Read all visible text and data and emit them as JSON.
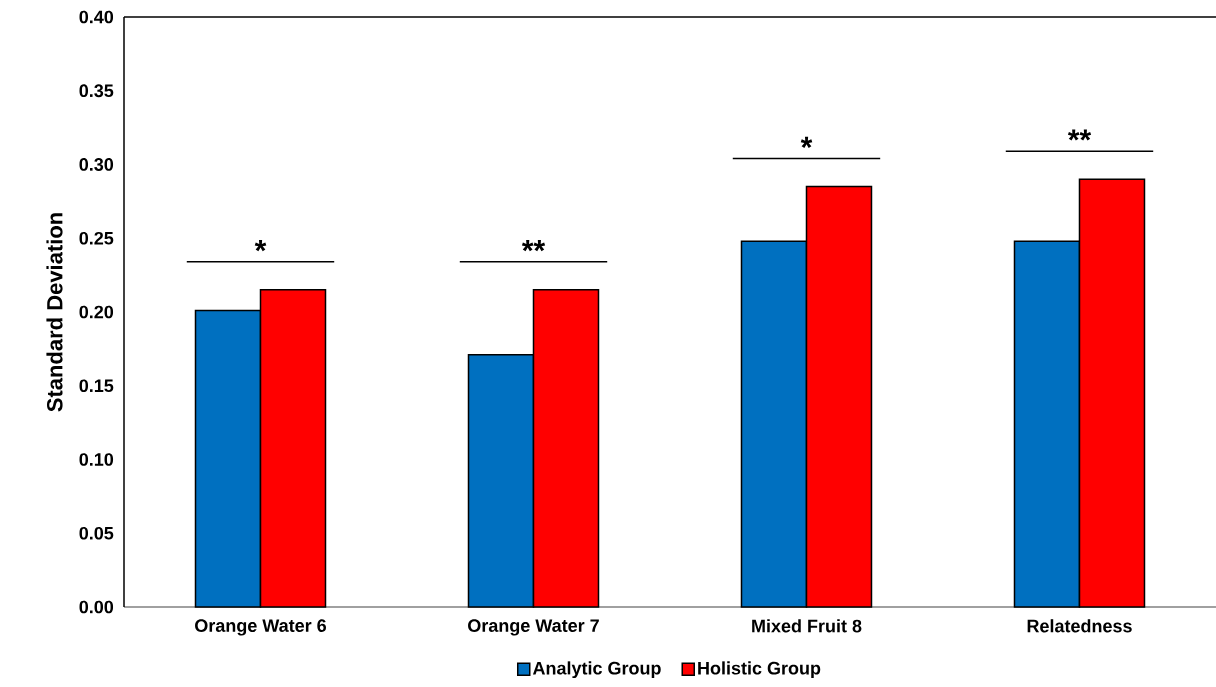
{
  "chart_data": {
    "type": "bar",
    "ylabel": "Standard Deviation",
    "categories": [
      "Orange Water 6",
      "Orange Water 7",
      "Mixed Fruit 8",
      "Relatedness"
    ],
    "series": [
      {
        "name": "Analytic Group",
        "color": "#0070c0",
        "values": [
          0.201,
          0.171,
          0.248,
          0.248
        ]
      },
      {
        "name": "Holistic Group",
        "color": "#ff0000",
        "values": [
          0.215,
          0.215,
          0.285,
          0.29
        ]
      }
    ],
    "ylim": [
      0,
      0.4
    ],
    "yticks": [
      {
        "value": 0,
        "label": "0.00"
      },
      {
        "value": 0.05,
        "label": "0.05"
      },
      {
        "value": 0.1,
        "label": "0.10"
      },
      {
        "value": 0.15,
        "label": "0.15"
      },
      {
        "value": 0.2,
        "label": "0.20"
      },
      {
        "value": 0.25,
        "label": "0.25"
      },
      {
        "value": 0.3,
        "label": "0.30"
      },
      {
        "value": 0.35,
        "label": "0.35"
      },
      {
        "value": 0.4,
        "label": "0.40"
      }
    ],
    "annotations": [
      "*",
      "**",
      "*",
      "**"
    ],
    "grid": false,
    "legend": "bottom"
  }
}
